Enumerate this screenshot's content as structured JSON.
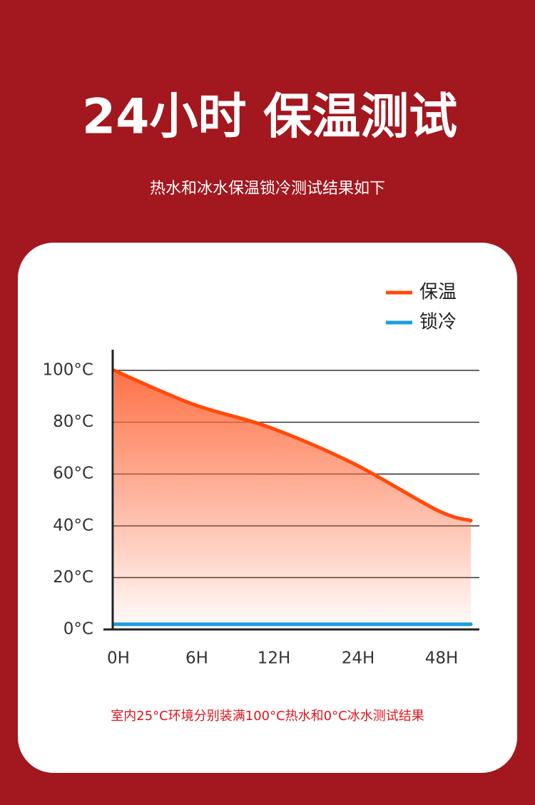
{
  "header": {
    "title": "24小时 保温测试",
    "subtitle": "热水和冰水保温锁冷测试结果如下"
  },
  "chart_data": {
    "type": "line",
    "categories": [
      "0H",
      "6H",
      "12H",
      "24H",
      "48H",
      null
    ],
    "series": [
      {
        "name": "保温",
        "color": "#ff4a0a",
        "values": [
          100,
          87,
          78,
          64,
          46,
          42
        ]
      },
      {
        "name": "锁冷",
        "color": "#1a9ee0",
        "values": [
          2,
          2,
          2,
          2,
          2,
          2
        ]
      }
    ],
    "ylim": [
      0,
      108
    ],
    "yticks": [
      {
        "value": 0,
        "label": "0°C"
      },
      {
        "value": 20,
        "label": "20°C"
      },
      {
        "value": 40,
        "label": "40°C"
      },
      {
        "value": 60,
        "label": "60°C"
      },
      {
        "value": 80,
        "label": "80°C"
      },
      {
        "value": 100,
        "label": "100°C"
      }
    ],
    "grid": true,
    "legend": "top-right",
    "note": "室内25°C环境分别装满100°C热水和0°C冰水测试结果"
  }
}
